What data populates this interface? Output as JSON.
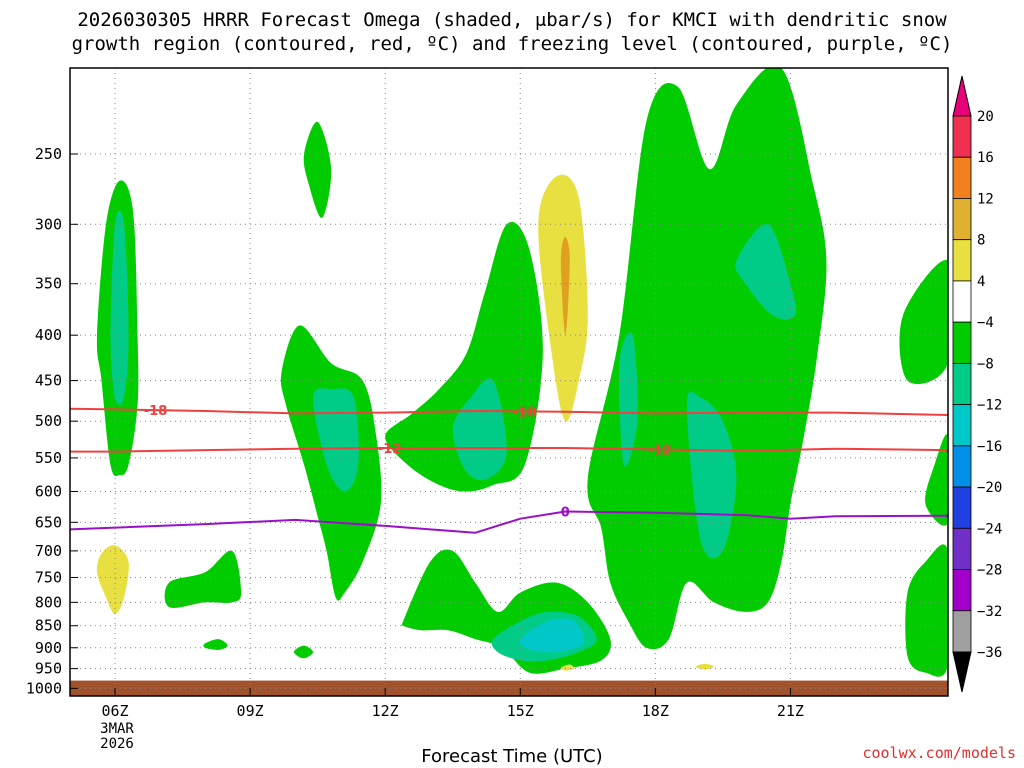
{
  "title_line1": "2026030305 HRRR Forecast Omega (shaded, μbar/s) for KMCI with dendritic snow",
  "title_line2": "growth region (contoured, red, ºC) and freezing level (contoured, purple, ºC)",
  "xlabel": "Forecast Time (UTC)",
  "credit": "coolwx.com/models",
  "date_label": [
    "3MAR",
    "2026"
  ],
  "chart_data": {
    "type": "heatmap",
    "x_ticks": [
      "06Z",
      "09Z",
      "12Z",
      "15Z",
      "18Z",
      "21Z"
    ],
    "x_tick_hours": [
      6,
      9,
      12,
      15,
      18,
      21
    ],
    "x_range_hours": [
      5,
      24.5
    ],
    "y_ticks": [
      250,
      300,
      350,
      400,
      450,
      500,
      550,
      600,
      650,
      700,
      750,
      800,
      850,
      900,
      950,
      1000
    ],
    "y_range_hPa": [
      200,
      1020
    ],
    "ground_top_hPa": 980,
    "colorbar": {
      "labels": [
        "20",
        "16",
        "12",
        "8",
        "4",
        "−4",
        "−8",
        "−12",
        "−16",
        "−20",
        "−24",
        "−28",
        "−32",
        "−36"
      ],
      "colors": [
        "#f03050",
        "#f08020",
        "#e0b030",
        "#e8e040",
        "#ffffff",
        "#00cc00",
        "#00cc88",
        "#00c8c8",
        "#0090e8",
        "#2040e0",
        "#7030c8",
        "#a000c8",
        "#a0a0a0"
      ],
      "top_arrow_color": "#e8007a",
      "bottom_arrow_color": "#000000"
    },
    "contour_labels": [
      {
        "text": "-18",
        "series": "dgz"
      },
      {
        "text": "-18",
        "series": "dgz"
      },
      {
        "text": "-12",
        "series": "dgz"
      },
      {
        "text": "-12",
        "series": "dgz"
      },
      {
        "text": "0",
        "series": "freezing"
      }
    ],
    "dgz_minus18": {
      "x": [
        5,
        6,
        8,
        10,
        12,
        14,
        16,
        18,
        20,
        22,
        24.5
      ],
      "p": [
        484,
        485,
        487,
        490,
        489,
        487,
        488,
        490,
        489,
        489,
        492
      ]
    },
    "dgz_minus12": {
      "x": [
        5,
        6,
        8,
        10,
        12,
        14,
        16,
        18,
        20,
        22,
        24.5
      ],
      "p": [
        541,
        541,
        539,
        537,
        536,
        536,
        536,
        538,
        540,
        537,
        539
      ]
    },
    "freezing_0": {
      "x": [
        5,
        6,
        8,
        10,
        11,
        12,
        13,
        14,
        15,
        16,
        18,
        20,
        21,
        22,
        24.5
      ],
      "p": [
        662,
        659,
        653,
        646,
        651,
        656,
        662,
        668,
        644,
        632,
        634,
        638,
        644,
        640,
        639
      ]
    },
    "omega_regions": [
      {
        "level": "-8",
        "x": [
          5.6,
          5.8,
          6.1,
          6.4,
          6.5,
          6.5,
          6.3,
          6.1,
          5.9,
          5.7
        ],
        "p": [
          400,
          300,
          268,
          290,
          400,
          480,
          560,
          575,
          560,
          450
        ]
      },
      {
        "level": "-12",
        "x": [
          5.9,
          6.0,
          6.2,
          6.3,
          6.2,
          6.0
        ],
        "p": [
          400,
          300,
          300,
          400,
          470,
          470
        ]
      },
      {
        "level": "4",
        "x": [
          5.6,
          5.7,
          6.0,
          6.3,
          6.2,
          6.0,
          5.8
        ],
        "p": [
          740,
          705,
          690,
          720,
          790,
          825,
          790
        ]
      },
      {
        "level": "-8",
        "x": [
          10.2,
          10.5,
          10.8,
          10.6,
          10.3
        ],
        "p": [
          250,
          230,
          260,
          295,
          270
        ]
      },
      {
        "level": "-8",
        "x": [
          9.7,
          10.1,
          10.8,
          11.5,
          11.8,
          11.9,
          11.5,
          11.1,
          10.9,
          10.7,
          10.5,
          10.2,
          9.8
        ],
        "p": [
          440,
          390,
          430,
          450,
          520,
          620,
          720,
          780,
          790,
          700,
          640,
          560,
          480
        ]
      },
      {
        "level": "-12",
        "x": [
          10.4,
          10.8,
          11.3,
          11.4,
          11.1,
          10.7
        ],
        "p": [
          470,
          460,
          470,
          560,
          600,
          560
        ]
      },
      {
        "level": "-8",
        "x": [
          12.0,
          12.6,
          13.2,
          13.8,
          14.2,
          14.7,
          15.2,
          15.5,
          15.1,
          14.4,
          13.8,
          13.2,
          12.5
        ],
        "p": [
          520,
          490,
          460,
          420,
          360,
          300,
          320,
          420,
          560,
          590,
          600,
          590,
          560
        ]
      },
      {
        "level": "-12",
        "x": [
          13.5,
          13.9,
          14.4,
          14.7,
          14.3,
          13.8
        ],
        "p": [
          510,
          470,
          450,
          540,
          580,
          570
        ]
      },
      {
        "level": "4",
        "x": [
          15.4,
          15.8,
          16.3,
          16.5,
          16.3,
          16.0,
          15.7
        ],
        "p": [
          300,
          265,
          280,
          380,
          450,
          500,
          420
        ]
      },
      {
        "level": "8",
        "x": [
          15.9,
          16.0,
          16.1,
          16.0
        ],
        "p": [
          330,
          310,
          330,
          400
        ]
      },
      {
        "level": "-8",
        "x": [
          16.5,
          17.2,
          17.8,
          18.5,
          19.2,
          19.8,
          20.8,
          21.5,
          21.8,
          21.6,
          21.3,
          21.0,
          20.8,
          20.5,
          20.0,
          19.3,
          18.7,
          18.3,
          17.8,
          17.4,
          17.0,
          16.8
        ],
        "p": [
          580,
          400,
          230,
          210,
          260,
          220,
          200,
          270,
          330,
          420,
          520,
          620,
          720,
          800,
          820,
          800,
          760,
          880,
          900,
          840,
          760,
          660
        ]
      },
      {
        "level": "-12",
        "x": [
          17.2,
          17.5,
          17.6,
          17.3
        ],
        "p": [
          430,
          400,
          500,
          560
        ]
      },
      {
        "level": "-12",
        "x": [
          18.7,
          19.0,
          19.5,
          19.8,
          19.5,
          19.0
        ],
        "p": [
          480,
          470,
          500,
          580,
          700,
          680
        ]
      },
      {
        "level": "-12",
        "x": [
          19.8,
          20.5,
          21.0,
          21.1,
          20.6,
          20.0
        ],
        "p": [
          330,
          300,
          350,
          380,
          380,
          350
        ]
      },
      {
        "level": "-8",
        "x": [
          7.2,
          8.0,
          8.6,
          8.8,
          8.6,
          8.0,
          7.2
        ],
        "p": [
          760,
          740,
          700,
          780,
          800,
          800,
          810
        ]
      },
      {
        "level": "-8",
        "x": [
          8.0,
          8.3,
          8.5,
          8.3,
          8.0
        ],
        "p": [
          890,
          880,
          895,
          905,
          900
        ]
      },
      {
        "level": "-8",
        "x": [
          10.0,
          10.2,
          10.4,
          10.2,
          10.0
        ],
        "p": [
          905,
          895,
          910,
          925,
          915
        ]
      },
      {
        "level": "-8",
        "x": [
          12.4,
          13.0,
          13.5,
          14.0,
          14.5,
          15.0,
          15.8,
          16.5,
          17.0,
          16.8,
          16.0,
          15.2,
          14.6,
          14.0,
          13.4,
          12.8,
          12.4
        ],
        "p": [
          840,
          720,
          700,
          760,
          820,
          780,
          760,
          800,
          880,
          930,
          950,
          960,
          900,
          880,
          860,
          860,
          850
        ]
      },
      {
        "level": "-12",
        "x": [
          14.4,
          15.0,
          15.6,
          16.3,
          16.7,
          16.3,
          15.6,
          15.0,
          14.5
        ],
        "p": [
          880,
          840,
          820,
          830,
          880,
          910,
          930,
          930,
          910
        ]
      },
      {
        "level": "-16",
        "x": [
          15.0,
          15.6,
          16.2,
          16.4,
          15.8,
          15.2
        ],
        "p": [
          880,
          840,
          840,
          890,
          910,
          905
        ]
      },
      {
        "level": "-8",
        "x": [
          23.5,
          24.5,
          24.5,
          23.6
        ],
        "p": [
          380,
          330,
          430,
          450
        ]
      },
      {
        "level": "-8",
        "x": [
          24.2,
          24.5,
          24.5,
          24.0
        ],
        "p": [
          560,
          520,
          650,
          620
        ]
      },
      {
        "level": "-8",
        "x": [
          23.6,
          24.0,
          24.5,
          24.5,
          24.0,
          23.6
        ],
        "p": [
          780,
          720,
          700,
          940,
          960,
          920
        ]
      },
      {
        "level": "4",
        "x": [
          15.9,
          16.1,
          16.2,
          16.0
        ],
        "p": [
          948,
          940,
          950,
          955
        ]
      },
      {
        "level": "4",
        "x": [
          18.9,
          19.1,
          19.3,
          19.1
        ],
        "p": [
          945,
          938,
          945,
          952
        ]
      }
    ]
  }
}
